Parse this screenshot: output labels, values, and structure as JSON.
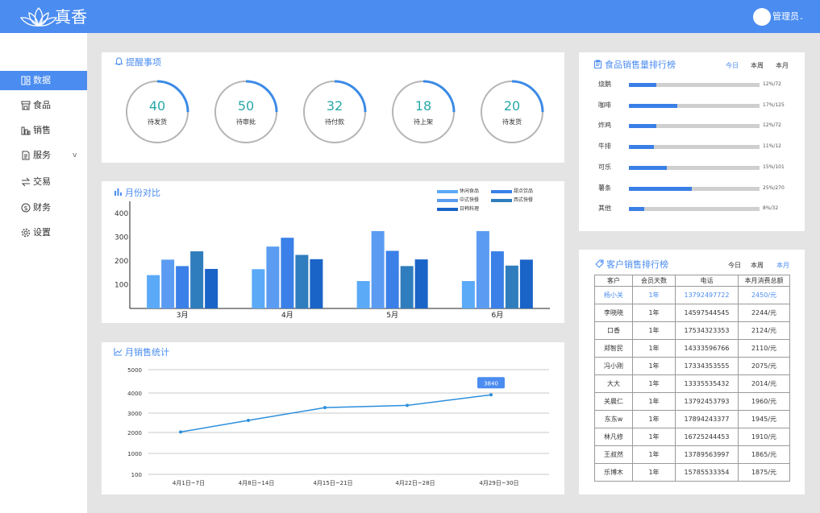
{
  "brand": "真香",
  "user": "管理员",
  "nav": [
    {
      "label": "数据",
      "icon": "grid-icon",
      "chevron": ""
    },
    {
      "label": "食品",
      "icon": "store-icon",
      "chevron": ""
    },
    {
      "label": "销售",
      "icon": "bar-chart-icon",
      "chevron": ""
    },
    {
      "label": "服务",
      "icon": "document-icon",
      "chevron": "v"
    },
    {
      "label": "交易",
      "icon": "exchange-icon",
      "chevron": ""
    },
    {
      "label": "财务",
      "icon": "dollar-icon",
      "chevron": ""
    },
    {
      "label": "设置",
      "icon": "gear-icon",
      "chevron": ""
    }
  ],
  "reminders": {
    "title": "提醒事项",
    "items": [
      {
        "value": "40",
        "label": "待发货",
        "progress": 0.25
      },
      {
        "value": "50",
        "label": "待审批",
        "progress": 0.25
      },
      {
        "value": "32",
        "label": "待付款",
        "progress": 0.25
      },
      {
        "value": "18",
        "label": "待上架",
        "progress": 0.25
      },
      {
        "value": "20",
        "label": "待发货",
        "progress": 0.25
      }
    ]
  },
  "ranking": {
    "title": "食品销售量排行榜",
    "tabs": [
      "今日",
      "本周",
      "本月"
    ],
    "rows": [
      {
        "name": "烧鹅",
        "value": "12%/72",
        "fraction": 0.21
      },
      {
        "name": "咖啡",
        "value": "17%/125",
        "fraction": 0.37
      },
      {
        "name": "炸鸡",
        "value": "12%/72",
        "fraction": 0.21
      },
      {
        "name": "牛排",
        "value": "11%/12",
        "fraction": 0.19
      },
      {
        "name": "可乐",
        "value": "15%/101",
        "fraction": 0.29
      },
      {
        "name": "薯条",
        "value": "25%/270",
        "fraction": 0.48
      },
      {
        "name": "其他",
        "value": "8%/32",
        "fraction": 0.12
      }
    ]
  },
  "monthly": {
    "title": "月份对比"
  },
  "weekly": {
    "title": "月销售统计"
  },
  "customers": {
    "title": "客户销售排行榜",
    "tabs": [
      "今日",
      "本周",
      "本月"
    ],
    "columns": [
      "客户",
      "会员天数",
      "电话",
      "本月消费总额"
    ],
    "rows": [
      [
        "杨小关",
        "1年",
        "13792497722",
        "2450/元"
      ],
      [
        "李晓晓",
        "1年",
        "14597544545",
        "2244/元"
      ],
      [
        "口香",
        "1年",
        "17534323353",
        "2124/元"
      ],
      [
        "郑智民",
        "1年",
        "14333596766",
        "2110/元"
      ],
      [
        "冯小刚",
        "1年",
        "17334353555",
        "2075/元"
      ],
      [
        "大大",
        "1年",
        "13335535432",
        "2014/元"
      ],
      [
        "关晨仁",
        "1年",
        "13792453793",
        "1960/元"
      ],
      [
        "东东w",
        "1年",
        "17894243377",
        "1945/元"
      ],
      [
        "林凡修",
        "1年",
        "16725244453",
        "1910/元"
      ],
      [
        "王叔然",
        "1年",
        "13789563997",
        "1865/元"
      ],
      [
        "乐博木",
        "1年",
        "15785533354",
        "1875/元"
      ]
    ]
  },
  "chart_data": [
    {
      "type": "bar",
      "title": "月份对比",
      "categories": [
        "3月",
        "4月",
        "5月",
        "6月"
      ],
      "ylim": [
        0,
        450
      ],
      "yticks": [
        "400",
        "300",
        "200",
        "100"
      ],
      "legend": [
        "休闲食品",
        "甜点饮品",
        "中式快餐",
        "西式快餐",
        "日韩料理"
      ],
      "series": [
        {
          "values": [
            140,
            165,
            115,
            115
          ],
          "color": "#5aaaf8"
        },
        {
          "values": [
            205,
            260,
            325,
            325
          ],
          "color": "#5b9cf2"
        },
        {
          "values": [
            178,
            297,
            242,
            240
          ],
          "color": "#3a80e8"
        },
        {
          "values": [
            240,
            225,
            178,
            180
          ],
          "color": "#2f7dbd"
        },
        {
          "values": [
            166,
            207,
            206,
            205
          ],
          "color": "#1a64c8"
        }
      ]
    },
    {
      "type": "line",
      "title": "月销售统计",
      "categories": [
        "4月1日~7日",
        "4月8日~14日",
        "4月15日~21日",
        "4月22日~28日",
        "4月29日~30日"
      ],
      "values": [
        2040,
        2600,
        3220,
        3330,
        3840
      ],
      "yticks": [
        "5000",
        "4000",
        "3000",
        "2000",
        "1000",
        "100"
      ],
      "tooltip": "3840",
      "color": "#2d8fdc"
    }
  ]
}
